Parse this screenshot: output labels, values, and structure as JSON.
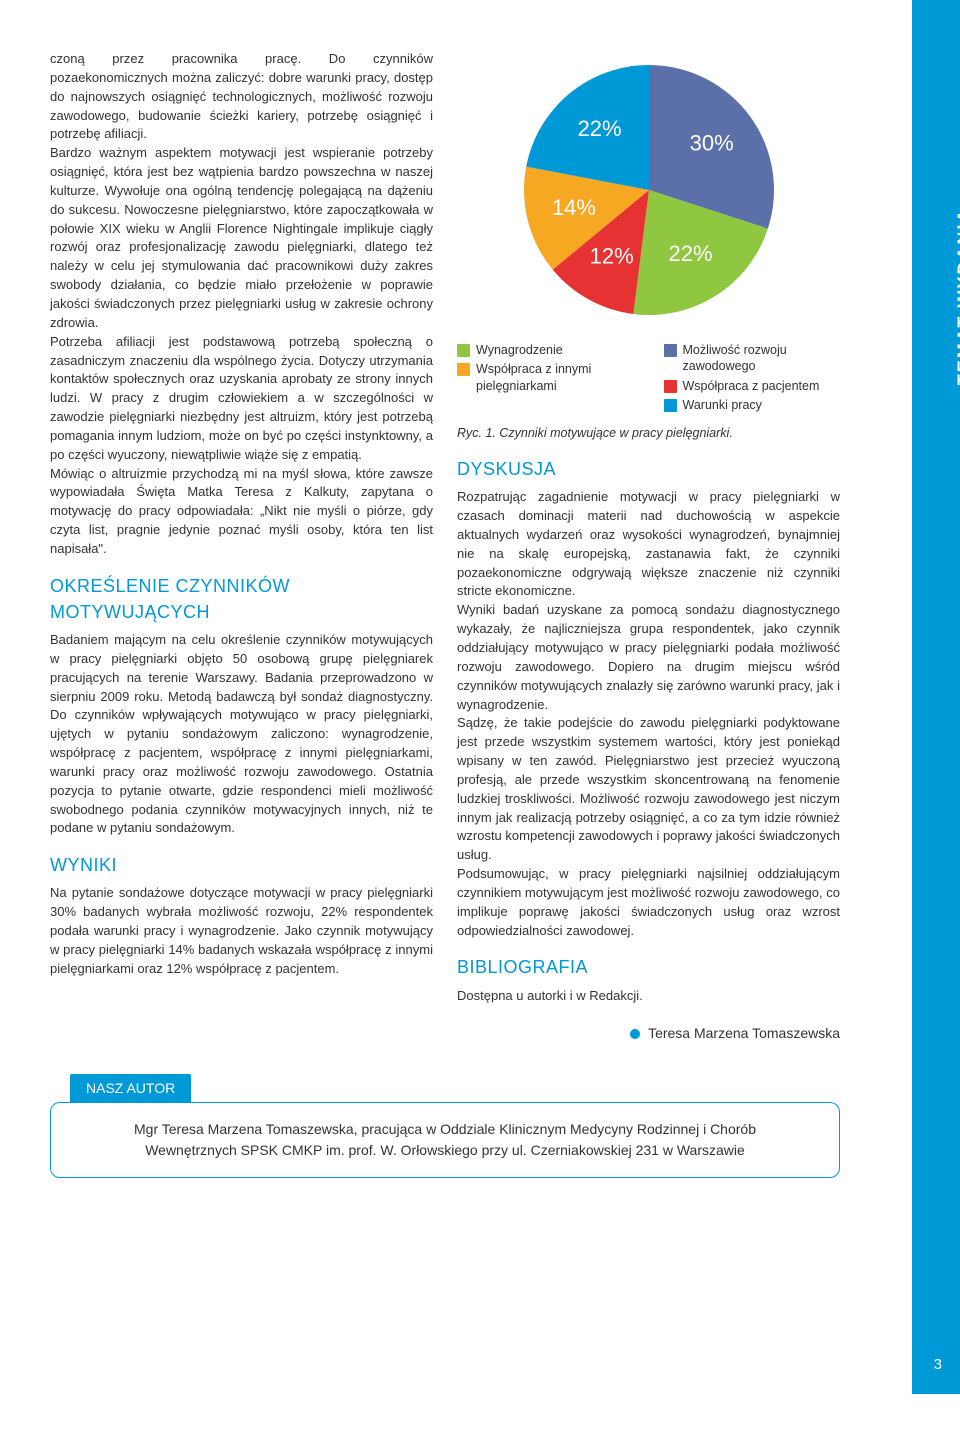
{
  "sidebar": {
    "label": "TEMAT WYDANIA",
    "bg_color": "#0099d8",
    "text_color": "#ffffff"
  },
  "leftColumn": {
    "para1": "czoną przez pracownika pracę. Do czynników pozaekonomicznych można zaliczyć: dobre warunki pracy, dostęp do najnowszych osiągnięć technologicznych, możliwość rozwoju zawodowego, budowanie ścieżki kariery, potrzebę osiągnięć i potrzebę afiliacji.",
    "para2": "Bardzo ważnym aspektem motywacji jest wspieranie potrzeby osiągnięć, która jest bez wątpienia bardzo powszechna w naszej kulturze. Wywołuje ona ogólną tendencję polegającą na dążeniu do sukcesu. Nowoczesne pielęgniarstwo, które zapoczątkowała w połowie XIX wieku w Anglii Florence Nightingale implikuje ciągły rozwój oraz profesjonalizację zawodu pielęgniarki, dlatego też należy w celu jej stymulowania dać pracownikowi duży zakres swobody działania, co będzie miało przełożenie w poprawie jakości świadczonych przez pielęgniarki usług w zakresie ochrony zdrowia.",
    "para3": "Potrzeba afiliacji jest podstawową potrzebą społeczną o zasadniczym znaczeniu dla wspólnego życia. Dotyczy utrzymania kontaktów społecznych oraz uzyskania aprobaty ze strony innych ludzi. W pracy z drugim człowiekiem a w szczególności w zawodzie pielęgniarki niezbędny jest altruizm, który jest potrzebą pomagania innym ludziom, może on być po części instynktowny, a po części wyuczony, niewątpliwie wiąże się z empatią.",
    "para4": "Mówiąc o altruizmie przychodzą mi na myśl słowa, które zawsze wypowiadała Święta Matka Teresa z Kalkuty, zapytana o motywację do pracy odpowiadała: „Nikt nie myśli o piórze, gdy czyta list, pragnie jedynie poznać myśli osoby, która ten list napisała\".",
    "h_okreslenie": "OKREŚLENIE CZYNNIKÓW MOTYWUJĄCYCH",
    "para5": "Badaniem mającym na celu określenie czynników motywujących w pracy pielęgniarki objęto 50 osobową grupę pielęgniarek pracujących na terenie Warszawy. Badania przeprowadzono w sierpniu 2009 roku. Metodą badawczą był sondaż diagnostyczny. Do czynników wpływających motywująco w pracy pielęgniarki, ujętych w pytaniu sondażowym zaliczono: wynagrodzenie, współpracę z pacjentem, współpracę z innymi pielęgniarkami, warunki pracy oraz możliwość rozwoju zawodowego. Ostatnia pozycja to pytanie otwarte, gdzie respondenci mieli możliwość swobodnego podania czynników motywacyjnych innych, niż te podane w pytaniu sondażowym.",
    "h_wyniki": "WYNIKI",
    "para6": "Na pytanie sondażowe dotyczące motywacji w pracy pielęgniarki 30% badanych wybrała możliwość rozwoju, 22% respondentek podała warunki pracy i wynagrodzenie. Jako czynnik motywujący w pracy pielęgniarki 14% badanych wskazała współpracę z innymi pielęgniarkami oraz 12% współpracę z pacjentem."
  },
  "chart": {
    "type": "pie",
    "slices": [
      {
        "label": "30%",
        "value": 30,
        "color": "#5b6fa8",
        "legend": "Możliwość rozwoju zawodowego"
      },
      {
        "label": "22%",
        "value": 22,
        "color": "#8fc740",
        "legend": "Wynagrodzenie"
      },
      {
        "label": "12%",
        "value": 12,
        "color": "#e63232",
        "legend": "Współpraca z pacjentem"
      },
      {
        "label": "14%",
        "value": 14,
        "color": "#f7a823",
        "legend": "Współpraca z innymi pielęgniarkami"
      },
      {
        "label": "22%",
        "value": 22,
        "color": "#0099d8",
        "legend": "Warunki pracy"
      }
    ],
    "label_fontsize": 22,
    "label_color": "#ffffff",
    "radius": 125,
    "bg": "#ffffff"
  },
  "legend": {
    "left": [
      {
        "color": "#8fc740",
        "text": "Wynagrodzenie"
      },
      {
        "color": "#f7a823",
        "text": "Współpraca z innymi pielęgniarkami"
      }
    ],
    "right": [
      {
        "color": "#5b6fa8",
        "text": "Możliwość rozwoju zawodowego"
      },
      {
        "color": "#e63232",
        "text": "Współpraca z pacjentem"
      },
      {
        "color": "#0099d8",
        "text": "Warunki pracy"
      }
    ]
  },
  "caption": "Ryc. 1. Czynniki motywujące w pracy pielęgniarki.",
  "rightColumn": {
    "h_dyskusja": "DYSKUSJA",
    "para1": "Rozpatrując zagadnienie motywacji w pracy pielęgniarki w czasach dominacji materii nad duchowością w aspekcie aktualnych wydarzeń oraz wysokości wynagrodzeń, bynajmniej nie na skalę europejską, zastanawia fakt, że czynniki pozaekonomiczne odgrywają większe znaczenie niż czynniki stricte ekonomiczne.",
    "para2": "Wyniki badań uzyskane za pomocą sondażu diagnostycznego wykazały, że najliczniejsza grupa respondentek, jako czynnik oddziałujący motywująco w pracy pielęgniarki podała możliwość rozwoju zawodowego. Dopiero na drugim miejscu wśród czynników motywujących znalazły się zarówno warunki pracy, jak i wynagrodzenie.",
    "para3": "Sądzę, że takie podejście do zawodu pielęgniarki podyktowane jest przede wszystkim systemem wartości, który jest poniekąd wpisany w ten zawód. Pielęgniarstwo jest przecież wyuczoną profesją, ale przede wszystkim skoncentrowaną na fenomenie ludzkiej troskliwości. Możliwość rozwoju zawodowego jest niczym innym jak realizacją potrzeby osiągnięć, a co za tym idzie również wzrostu kompetencji zawodowych i poprawy jakości świadczonych usług.",
    "para4": "Podsumowując, w pracy pielęgniarki najsilniej oddziałującym czynnikiem motywującym jest możliwość rozwoju zawodowego, co implikuje poprawę jakości świadczonych usług oraz wzrost odpowiedzialności zawodowej.",
    "h_biblio": "BIBLIOGRAFIA",
    "biblio_text": "Dostępna u autorki i w Redakcji.",
    "author": "Teresa Marzena Tomaszewska",
    "author_dot_color": "#0099d8"
  },
  "authorBox": {
    "tab": "NASZ AUTOR",
    "text": "Mgr Teresa Marzena Tomaszewska, pracująca w Oddziale Klinicznym Medycyny Rodzinnej i Chorób Wewnętrznych SPSK CMKP im. prof. W. Orłowskiego przy ul. Czerniakowskiej 231 w Warszawie"
  },
  "pageNumber": "3"
}
